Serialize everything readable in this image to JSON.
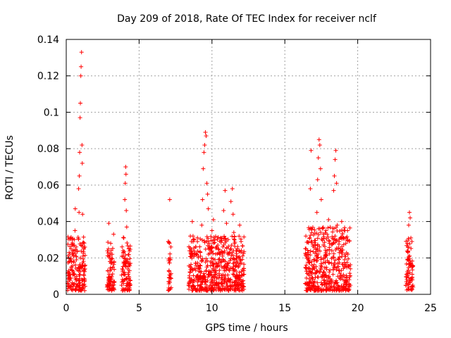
{
  "chart_data": {
    "type": "scatter",
    "title": "Day 209 of 2018, Rate Of TEC Index for receiver nclf",
    "xlabel": "GPS time / hours",
    "ylabel": "ROTI / TECUs",
    "xlim": [
      0,
      25
    ],
    "ylim": [
      0,
      0.14
    ],
    "grid": true,
    "x_ticks": [
      0,
      5,
      10,
      15,
      20,
      25
    ],
    "x_tick_labels": [
      "0",
      "5",
      "10",
      "15",
      "20",
      "25"
    ],
    "y_ticks": [
      0,
      0.02,
      0.04,
      0.06,
      0.08,
      0.1,
      0.12,
      0.14
    ],
    "y_tick_labels": [
      "0",
      "0.02",
      "0.04",
      "0.06",
      "0.08",
      "0.1",
      "0.12",
      "0.14"
    ],
    "marker": "+",
    "marker_color": "#ff0000",
    "clusters": [
      {
        "x_range": [
          0.1,
          1.3
        ],
        "typical_max": 0.03,
        "peak": 0.133,
        "peak_x": 1.05
      },
      {
        "x_range": [
          2.8,
          3.3
        ],
        "typical_max": 0.028,
        "peak": 0.04,
        "peak_x": 2.9
      },
      {
        "x_range": [
          3.8,
          4.4
        ],
        "typical_max": 0.03,
        "peak": 0.07,
        "peak_x": 4.1
      },
      {
        "x_range": [
          7.0,
          7.2
        ],
        "typical_max": 0.028,
        "peak": 0.052,
        "peak_x": 7.1
      },
      {
        "x_range": [
          8.4,
          12.2
        ],
        "typical_max": 0.03,
        "peak": 0.089,
        "peak_x": 9.6
      },
      {
        "x_range": [
          16.4,
          19.5
        ],
        "typical_max": 0.035,
        "peak": 0.085,
        "peak_x": 17.4
      },
      {
        "x_range": [
          23.3,
          23.8
        ],
        "typical_max": 0.03,
        "peak": 0.045,
        "peak_x": 23.6
      }
    ],
    "points": [
      [
        0.1,
        0.006
      ],
      [
        0.15,
        0.012
      ],
      [
        0.2,
        0.018
      ],
      [
        0.25,
        0.004
      ],
      [
        0.3,
        0.009
      ],
      [
        0.35,
        0.015
      ],
      [
        0.4,
        0.022
      ],
      [
        0.45,
        0.003
      ],
      [
        0.5,
        0.011
      ],
      [
        0.55,
        0.027
      ],
      [
        0.6,
        0.035
      ],
      [
        0.62,
        0.047
      ],
      [
        0.65,
        0.008
      ],
      [
        0.7,
        0.019
      ],
      [
        0.75,
        0.024
      ],
      [
        0.8,
        0.005
      ],
      [
        0.85,
        0.058
      ],
      [
        0.88,
        0.045
      ],
      [
        0.9,
        0.065
      ],
      [
        0.92,
        0.078
      ],
      [
        0.95,
        0.097
      ],
      [
        0.97,
        0.105
      ],
      [
        1.0,
        0.12
      ],
      [
        1.02,
        0.125
      ],
      [
        1.05,
        0.133
      ],
      [
        1.08,
        0.082
      ],
      [
        1.1,
        0.072
      ],
      [
        1.12,
        0.044
      ],
      [
        1.15,
        0.021
      ],
      [
        1.2,
        0.013
      ],
      [
        1.25,
        0.007
      ],
      [
        1.3,
        0.016
      ],
      [
        2.8,
        0.004
      ],
      [
        2.85,
        0.013
      ],
      [
        2.9,
        0.025
      ],
      [
        2.92,
        0.039
      ],
      [
        2.95,
        0.006
      ],
      [
        3.0,
        0.018
      ],
      [
        3.05,
        0.028
      ],
      [
        3.1,
        0.009
      ],
      [
        3.15,
        0.022
      ],
      [
        3.2,
        0.015
      ],
      [
        3.25,
        0.033
      ],
      [
        3.3,
        0.007
      ],
      [
        3.8,
        0.005
      ],
      [
        3.85,
        0.014
      ],
      [
        3.9,
        0.024
      ],
      [
        3.95,
        0.031
      ],
      [
        4.0,
        0.008
      ],
      [
        4.02,
        0.052
      ],
      [
        4.05,
        0.061
      ],
      [
        4.08,
        0.07
      ],
      [
        4.1,
        0.066
      ],
      [
        4.12,
        0.046
      ],
      [
        4.15,
        0.037
      ],
      [
        4.2,
        0.019
      ],
      [
        4.25,
        0.011
      ],
      [
        4.3,
        0.025
      ],
      [
        4.35,
        0.006
      ],
      [
        4.4,
        0.017
      ],
      [
        7.02,
        0.007
      ],
      [
        7.05,
        0.013
      ],
      [
        7.08,
        0.028
      ],
      [
        7.1,
        0.052
      ],
      [
        7.12,
        0.02
      ],
      [
        7.15,
        0.009
      ],
      [
        7.18,
        0.026
      ],
      [
        8.4,
        0.005
      ],
      [
        8.5,
        0.012
      ],
      [
        8.6,
        0.021
      ],
      [
        8.65,
        0.04
      ],
      [
        8.7,
        0.032
      ],
      [
        8.8,
        0.008
      ],
      [
        8.9,
        0.017
      ],
      [
        9.0,
        0.029
      ],
      [
        9.1,
        0.014
      ],
      [
        9.2,
        0.023
      ],
      [
        9.3,
        0.038
      ],
      [
        9.35,
        0.052
      ],
      [
        9.4,
        0.069
      ],
      [
        9.45,
        0.078
      ],
      [
        9.5,
        0.082
      ],
      [
        9.55,
        0.089
      ],
      [
        9.6,
        0.087
      ],
      [
        9.65,
        0.061
      ],
      [
        9.7,
        0.055
      ],
      [
        9.75,
        0.047
      ],
      [
        9.8,
        0.026
      ],
      [
        9.9,
        0.011
      ],
      [
        10.0,
        0.035
      ],
      [
        10.1,
        0.041
      ],
      [
        10.2,
        0.019
      ],
      [
        10.3,
        0.009
      ],
      [
        10.4,
        0.027
      ],
      [
        10.5,
        0.016
      ],
      [
        10.6,
        0.031
      ],
      [
        10.7,
        0.006
      ],
      [
        10.8,
        0.046
      ],
      [
        10.9,
        0.057
      ],
      [
        11.0,
        0.039
      ],
      [
        11.1,
        0.022
      ],
      [
        11.2,
        0.013
      ],
      [
        11.3,
        0.051
      ],
      [
        11.4,
        0.058
      ],
      [
        11.45,
        0.044
      ],
      [
        11.5,
        0.034
      ],
      [
        11.6,
        0.007
      ],
      [
        11.7,
        0.024
      ],
      [
        11.8,
        0.015
      ],
      [
        11.9,
        0.038
      ],
      [
        12.0,
        0.029
      ],
      [
        12.1,
        0.005
      ],
      [
        12.2,
        0.011
      ],
      [
        16.4,
        0.006
      ],
      [
        16.5,
        0.014
      ],
      [
        16.6,
        0.023
      ],
      [
        16.7,
        0.031
      ],
      [
        16.75,
        0.058
      ],
      [
        16.8,
        0.079
      ],
      [
        16.9,
        0.009
      ],
      [
        17.0,
        0.019
      ],
      [
        17.1,
        0.027
      ],
      [
        17.2,
        0.045
      ],
      [
        17.25,
        0.063
      ],
      [
        17.3,
        0.075
      ],
      [
        17.35,
        0.085
      ],
      [
        17.4,
        0.082
      ],
      [
        17.45,
        0.069
      ],
      [
        17.5,
        0.052
      ],
      [
        17.6,
        0.036
      ],
      [
        17.7,
        0.012
      ],
      [
        17.8,
        0.021
      ],
      [
        17.9,
        0.033
      ],
      [
        18.0,
        0.041
      ],
      [
        18.1,
        0.007
      ],
      [
        18.2,
        0.017
      ],
      [
        18.3,
        0.028
      ],
      [
        18.35,
        0.057
      ],
      [
        18.4,
        0.065
      ],
      [
        18.45,
        0.074
      ],
      [
        18.5,
        0.079
      ],
      [
        18.55,
        0.061
      ],
      [
        18.6,
        0.038
      ],
      [
        18.7,
        0.013
      ],
      [
        18.8,
        0.025
      ],
      [
        18.9,
        0.04
      ],
      [
        19.0,
        0.008
      ],
      [
        19.1,
        0.019
      ],
      [
        19.2,
        0.031
      ],
      [
        19.3,
        0.035
      ],
      [
        19.4,
        0.005
      ],
      [
        19.5,
        0.014
      ],
      [
        23.3,
        0.005
      ],
      [
        23.35,
        0.011
      ],
      [
        23.4,
        0.019
      ],
      [
        23.45,
        0.026
      ],
      [
        23.5,
        0.038
      ],
      [
        23.55,
        0.045
      ],
      [
        23.6,
        0.042
      ],
      [
        23.65,
        0.031
      ],
      [
        23.7,
        0.016
      ],
      [
        23.75,
        0.008
      ],
      [
        23.8,
        0.004
      ]
    ]
  }
}
